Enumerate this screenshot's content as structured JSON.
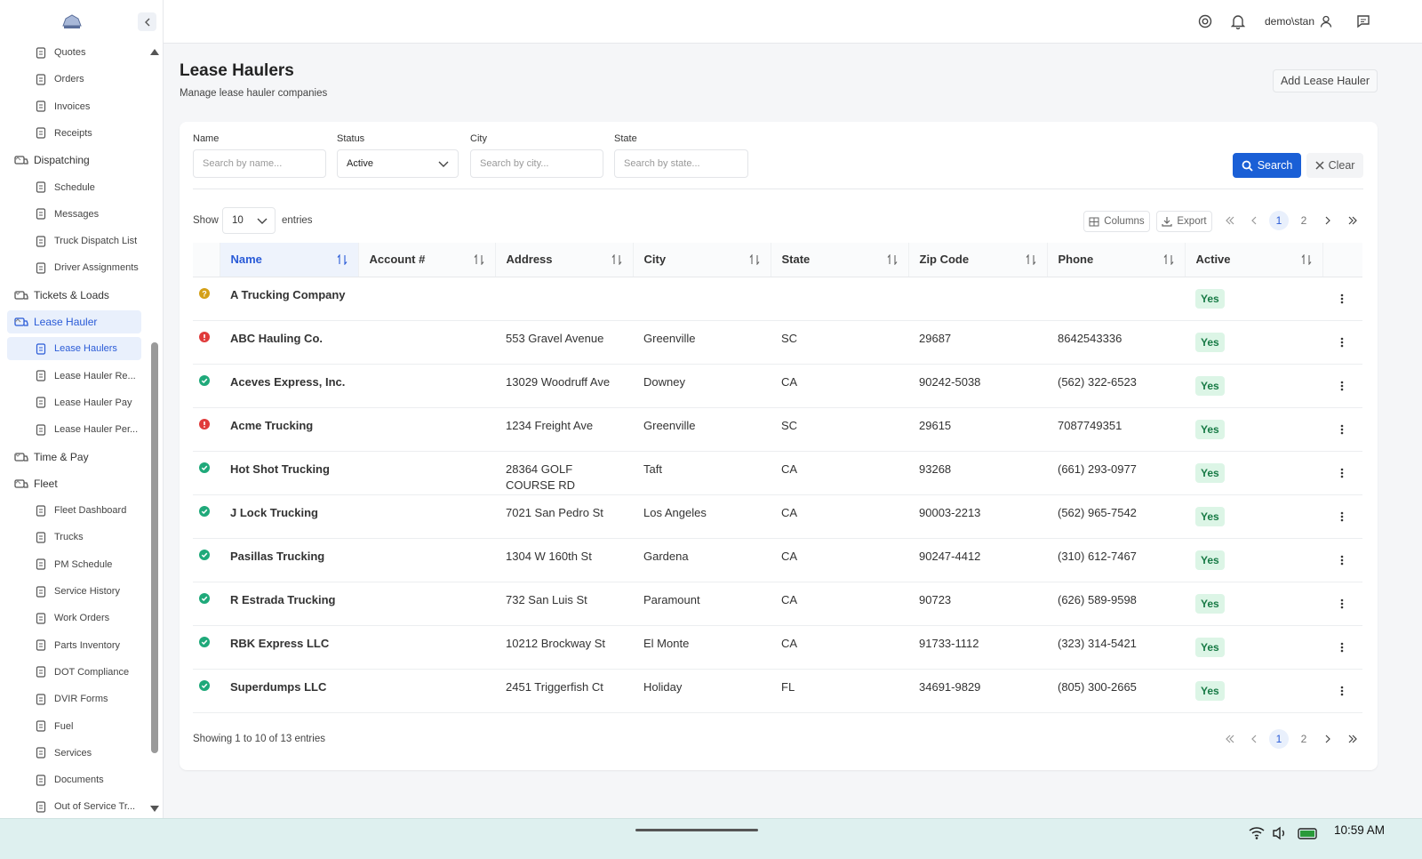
{
  "topbar": {
    "user": "demo\\stan"
  },
  "sidebar": {
    "items": [
      {
        "label": "Quotes",
        "level": 2
      },
      {
        "label": "Orders",
        "level": 2
      },
      {
        "label": "Invoices",
        "level": 2
      },
      {
        "label": "Receipts",
        "level": 2
      },
      {
        "label": "Dispatching",
        "level": 1,
        "open": true
      },
      {
        "label": "Schedule",
        "level": 2
      },
      {
        "label": "Messages",
        "level": 2
      },
      {
        "label": "Truck Dispatch List",
        "level": 2
      },
      {
        "label": "Driver Assignments",
        "level": 2
      },
      {
        "label": "Tickets & Loads",
        "level": 1,
        "open": false
      },
      {
        "label": "Lease Hauler",
        "level": 1,
        "open": true,
        "active": true
      },
      {
        "label": "Lease Haulers",
        "level": 2,
        "active": true
      },
      {
        "label": "Lease Hauler Re...",
        "level": 2
      },
      {
        "label": "Lease Hauler Pay",
        "level": 2
      },
      {
        "label": "Lease Hauler Per...",
        "level": 2
      },
      {
        "label": "Time & Pay",
        "level": 1,
        "open": false
      },
      {
        "label": "Fleet",
        "level": 1,
        "open": true
      },
      {
        "label": "Fleet Dashboard",
        "level": 2
      },
      {
        "label": "Trucks",
        "level": 2
      },
      {
        "label": "PM Schedule",
        "level": 2
      },
      {
        "label": "Service History",
        "level": 2
      },
      {
        "label": "Work Orders",
        "level": 2
      },
      {
        "label": "Parts Inventory",
        "level": 2
      },
      {
        "label": "DOT Compliance",
        "level": 2
      },
      {
        "label": "DVIR Forms",
        "level": 2
      },
      {
        "label": "Fuel",
        "level": 2
      },
      {
        "label": "Services",
        "level": 2
      },
      {
        "label": "Documents",
        "level": 2
      },
      {
        "label": "Out of Service Tr...",
        "level": 2
      }
    ]
  },
  "header": {
    "title": "Lease Haulers",
    "subtitle": "Manage lease hauler companies",
    "add_button": "Add Lease Hauler"
  },
  "filters": {
    "fields": [
      {
        "label": "Name",
        "placeholder": "Search by name..."
      },
      {
        "label": "Status",
        "value": "Active"
      },
      {
        "label": "City",
        "placeholder": "Search by city..."
      },
      {
        "label": "State",
        "placeholder": "Search by state..."
      }
    ],
    "search": "Search",
    "clear": "Clear"
  },
  "toolbar": {
    "show": "Show",
    "page_size": "10",
    "entries": "entries",
    "columns": "Columns",
    "export": "Export",
    "pages": [
      "1",
      "2"
    ]
  },
  "table": {
    "columns": [
      "Name",
      "Account #",
      "Address",
      "City",
      "State",
      "Zip Code",
      "Phone",
      "Active"
    ],
    "rows": [
      {
        "icon": "warning",
        "name": "A Trucking Company",
        "address": null,
        "city": null,
        "state": null,
        "zip": null,
        "phone": null,
        "active": "Yes"
      },
      {
        "icon": "error",
        "name": "ABC Hauling Co.",
        "address": "553 Gravel Avenue",
        "city": "Greenville",
        "state": "SC",
        "zip": "29687",
        "phone": "8642543336",
        "active": "Yes"
      },
      {
        "icon": "ok",
        "name": "Aceves Express, Inc.",
        "address": "13029 Woodruff Ave",
        "city": "Downey",
        "state": "CA",
        "zip": "90242-5038",
        "phone": "(562) 322-6523",
        "active": "Yes"
      },
      {
        "icon": "error",
        "name": "Acme Trucking",
        "address": "1234 Freight Ave",
        "city": "Greenville",
        "state": "SC",
        "zip": "29615",
        "phone": "7087749351",
        "active": "Yes"
      },
      {
        "icon": "ok",
        "name": "Hot Shot Trucking",
        "address": "28364 GOLF COURSE RD",
        "city": "Taft",
        "state": "CA",
        "zip": "93268",
        "phone": "(661) 293-0977",
        "active": "Yes"
      },
      {
        "icon": "ok",
        "name": "J Lock Trucking",
        "address": "7021 San Pedro St",
        "city": "Los Angeles",
        "state": "CA",
        "zip": "90003-2213",
        "phone": "(562) 965-7542",
        "active": "Yes"
      },
      {
        "icon": "ok",
        "name": "Pasillas Trucking",
        "address": "1304 W 160th St",
        "city": "Gardena",
        "state": "CA",
        "zip": "90247-4412",
        "phone": "(310) 612-7467",
        "active": "Yes"
      },
      {
        "icon": "ok",
        "name": "R Estrada Trucking",
        "address": "732 San Luis St",
        "city": "Paramount",
        "state": "CA",
        "zip": "90723",
        "phone": "(626) 589-9598",
        "active": "Yes"
      },
      {
        "icon": "ok",
        "name": "RBK Express LLC",
        "address": "10212 Brockway St",
        "city": "El Monte",
        "state": "CA",
        "zip": "91733-1112",
        "phone": "(323) 314-5421",
        "active": "Yes"
      },
      {
        "icon": "ok",
        "name": "Superdumps LLC",
        "address": "2451 Triggerfish Ct",
        "city": "Holiday",
        "state": "FL",
        "zip": "34691-9829",
        "phone": "(805) 300-2665",
        "active": "Yes"
      }
    ]
  },
  "footer": {
    "summary": "Showing 1 to 10 of 13 entries"
  },
  "taskbar": {
    "time": "10:59 AM"
  }
}
